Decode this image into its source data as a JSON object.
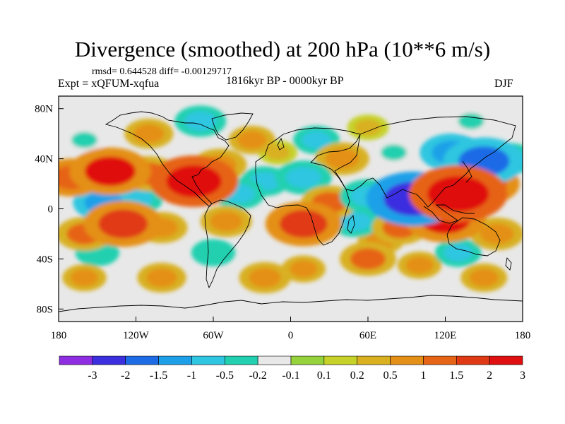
{
  "chart_data": {
    "type": "heatmap",
    "title": "Divergence (smoothed) at 200 hPa (10**6 m/s)",
    "stats_text": "rmsd= 0.644528 diff= -0.00129717",
    "experiment": "Expt = xQFUM-xqfua",
    "period": "1816kyr BP - 0000kyr BP",
    "season": "DJF",
    "xlim": [
      -180,
      180
    ],
    "ylim": [
      -90,
      90
    ],
    "x_ticks": [
      {
        "value": -180,
        "label": "180"
      },
      {
        "value": -120,
        "label": "120W"
      },
      {
        "value": -60,
        "label": "60W"
      },
      {
        "value": 0,
        "label": "0"
      },
      {
        "value": 60,
        "label": "60E"
      },
      {
        "value": 120,
        "label": "120E"
      },
      {
        "value": 180,
        "label": "180"
      }
    ],
    "y_ticks": [
      {
        "value": 80,
        "label": "80N"
      },
      {
        "value": 40,
        "label": "40N"
      },
      {
        "value": 0,
        "label": "0"
      },
      {
        "value": -40,
        "label": "40S"
      },
      {
        "value": -80,
        "label": "80S"
      }
    ],
    "colorbar": {
      "colors": [
        "#8e2de2",
        "#3b2fe0",
        "#1e6be6",
        "#1ea0e8",
        "#2ec6e0",
        "#22d0b0",
        "#e8e8e8",
        "#96d23c",
        "#c6d22a",
        "#d8b020",
        "#e49018",
        "#e66416",
        "#e03a14",
        "#e01010"
      ],
      "labels": [
        "-3",
        "-2",
        "-1.5",
        "-1",
        "-0.5",
        "-0.2",
        "-0.1",
        "0.1",
        "0.2",
        "0.5",
        "1",
        "1.5",
        "2",
        "3"
      ]
    },
    "anomalies": [
      {
        "lon": -140,
        "lat": 30,
        "value": 2.0
      },
      {
        "lon": -170,
        "lat": 25,
        "value": 1.3
      },
      {
        "lon": -110,
        "lat": 28,
        "value": 1.1
      },
      {
        "lon": -145,
        "lat": 5,
        "value": -1.2
      },
      {
        "lon": -120,
        "lat": 8,
        "value": -0.9
      },
      {
        "lon": -130,
        "lat": -12,
        "value": 1.9
      },
      {
        "lon": -160,
        "lat": -20,
        "value": 1.0
      },
      {
        "lon": -100,
        "lat": -15,
        "value": 0.8
      },
      {
        "lon": -150,
        "lat": -35,
        "value": -0.5
      },
      {
        "lon": -160,
        "lat": 55,
        "value": -0.4
      },
      {
        "lon": -110,
        "lat": 60,
        "value": 0.7
      },
      {
        "lon": -75,
        "lat": 22,
        "value": 2.3
      },
      {
        "lon": -55,
        "lat": 35,
        "value": 0.9
      },
      {
        "lon": -40,
        "lat": 12,
        "value": -0.8
      },
      {
        "lon": -70,
        "lat": 70,
        "value": -0.8
      },
      {
        "lon": -30,
        "lat": 55,
        "value": 0.6
      },
      {
        "lon": -10,
        "lat": 45,
        "value": 0.3
      },
      {
        "lon": 20,
        "lat": 55,
        "value": -0.6
      },
      {
        "lon": 40,
        "lat": 40,
        "value": 0.9
      },
      {
        "lon": 10,
        "lat": 25,
        "value": -1.0
      },
      {
        "lon": -20,
        "lat": 22,
        "value": -0.7
      },
      {
        "lon": 30,
        "lat": 5,
        "value": 1.0
      },
      {
        "lon": 10,
        "lat": -15,
        "value": 1.2
      },
      {
        "lon": 10,
        "lat": -12,
        "value": 1.8
      },
      {
        "lon": -50,
        "lat": -10,
        "value": 0.8
      },
      {
        "lon": -60,
        "lat": -35,
        "value": -0.5
      },
      {
        "lon": 50,
        "lat": -10,
        "value": -0.8
      },
      {
        "lon": 60,
        "lat": 10,
        "value": -1.0
      },
      {
        "lon": 80,
        "lat": 45,
        "value": -0.4
      },
      {
        "lon": 85,
        "lat": -15,
        "value": 1.0
      },
      {
        "lon": 70,
        "lat": -25,
        "value": 0.6
      },
      {
        "lon": 95,
        "lat": 8,
        "value": -2.5
      },
      {
        "lon": 110,
        "lat": 0,
        "value": -1.5
      },
      {
        "lon": 130,
        "lat": 12,
        "value": 2.7
      },
      {
        "lon": 150,
        "lat": 20,
        "value": 1.6
      },
      {
        "lon": 120,
        "lat": -8,
        "value": 2.0
      },
      {
        "lon": 150,
        "lat": 38,
        "value": -2.0
      },
      {
        "lon": 125,
        "lat": 45,
        "value": -1.3
      },
      {
        "lon": 170,
        "lat": 40,
        "value": -0.8
      },
      {
        "lon": 160,
        "lat": -20,
        "value": 0.9
      },
      {
        "lon": 130,
        "lat": -35,
        "value": -0.6
      },
      {
        "lon": 60,
        "lat": -40,
        "value": 1.0
      },
      {
        "lon": 100,
        "lat": -45,
        "value": 0.5
      },
      {
        "lon": -100,
        "lat": -55,
        "value": 0.7
      },
      {
        "lon": -20,
        "lat": -55,
        "value": 0.8
      },
      {
        "lon": 10,
        "lat": -48,
        "value": 0.5
      },
      {
        "lon": 150,
        "lat": -55,
        "value": 0.6
      },
      {
        "lon": -160,
        "lat": -55,
        "value": 0.5
      },
      {
        "lon": 60,
        "lat": 65,
        "value": 0.4
      },
      {
        "lon": 140,
        "lat": 70,
        "value": -0.4
      }
    ]
  },
  "colors": {
    "plot_background": "#e8e8e8",
    "coastline": "#000000"
  }
}
